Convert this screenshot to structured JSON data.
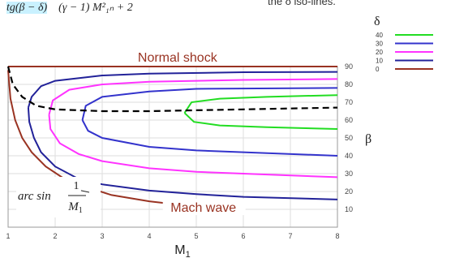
{
  "formula": {
    "part1": "tg(β − δ)",
    "part2": "(γ − 1) M²₁ₙ + 2",
    "note": "the δ iso-lines."
  },
  "chart_data": {
    "type": "line",
    "title": "",
    "xlabel": "M1",
    "xlabel_sub": "1",
    "xlabel_main": "M",
    "ylabel": "β",
    "xlim": [
      1,
      8
    ],
    "ylim": [
      0,
      90
    ],
    "xticks": [
      "1",
      "2",
      "3",
      "4",
      "5",
      "6",
      "7",
      "8"
    ],
    "yticks": [
      "10",
      "20",
      "30",
      "40",
      "50",
      "60",
      "70",
      "80",
      "90"
    ],
    "legend": {
      "title": "δ",
      "position": "right",
      "entries": [
        {
          "label": "40",
          "color": "#22dd22"
        },
        {
          "label": "30",
          "color": "#3333cc"
        },
        {
          "label": "20",
          "color": "#ff33ff"
        },
        {
          "label": "10",
          "color": "#222299"
        },
        {
          "label": "0",
          "color": "#993322"
        }
      ]
    },
    "annotations": {
      "normal_shock": "Normal shock",
      "mach_wave": "Mach wave",
      "arcsin_text": "arc sin",
      "frac_num": "1",
      "frac_den_main": "M",
      "frac_den_sub": "1"
    },
    "series": [
      {
        "name": "0",
        "color": "#993322",
        "strong": [
          [
            1.0,
            90
          ],
          [
            8.0,
            90
          ]
        ],
        "weak": [
          [
            1.0,
            88
          ],
          [
            1.05,
            72
          ],
          [
            1.15,
            60
          ],
          [
            1.3,
            50
          ],
          [
            1.5,
            42
          ],
          [
            1.8,
            34
          ],
          [
            2.2,
            27
          ],
          [
            2.6,
            23
          ],
          [
            3.2,
            18
          ],
          [
            4.0,
            14.5
          ],
          [
            5.0,
            11.5
          ],
          [
            6.0,
            9.6
          ]
        ]
      },
      {
        "name": "10",
        "color": "#222299",
        "strong": [
          [
            1.43,
            67
          ],
          [
            1.5,
            73
          ],
          [
            1.7,
            79
          ],
          [
            2.0,
            82
          ],
          [
            3.0,
            85
          ],
          [
            4.0,
            86
          ],
          [
            6.0,
            86.8
          ],
          [
            8.0,
            87
          ]
        ],
        "weak": [
          [
            1.43,
            67
          ],
          [
            1.45,
            59
          ],
          [
            1.55,
            50
          ],
          [
            1.7,
            42
          ],
          [
            2.0,
            34
          ],
          [
            2.5,
            27
          ],
          [
            3.0,
            24
          ],
          [
            4.0,
            20.5
          ],
          [
            5.0,
            18.5
          ],
          [
            6.0,
            17
          ],
          [
            8.0,
            15.5
          ]
        ]
      },
      {
        "name": "20",
        "color": "#ff33ff",
        "strong": [
          [
            1.87,
            63
          ],
          [
            1.95,
            71
          ],
          [
            2.3,
            77
          ],
          [
            3.0,
            80
          ],
          [
            4.0,
            81.5
          ],
          [
            6.0,
            82.5
          ],
          [
            8.0,
            83
          ]
        ],
        "weak": [
          [
            1.87,
            63
          ],
          [
            1.9,
            55
          ],
          [
            2.1,
            47
          ],
          [
            2.5,
            41
          ],
          [
            3.0,
            37
          ],
          [
            4.0,
            33
          ],
          [
            5.0,
            31
          ],
          [
            6.0,
            30
          ],
          [
            8.0,
            28
          ]
        ]
      },
      {
        "name": "30",
        "color": "#3333cc",
        "strong": [
          [
            2.58,
            60
          ],
          [
            2.65,
            68
          ],
          [
            3.0,
            73
          ],
          [
            4.0,
            76
          ],
          [
            5.0,
            77.5
          ],
          [
            8.0,
            78
          ]
        ],
        "weak": [
          [
            2.58,
            60
          ],
          [
            2.7,
            54
          ],
          [
            3.0,
            50
          ],
          [
            4.0,
            45
          ],
          [
            5.0,
            43
          ],
          [
            6.0,
            42
          ],
          [
            8.0,
            40
          ]
        ]
      },
      {
        "name": "40",
        "color": "#22dd22",
        "strong": [
          [
            4.75,
            64
          ],
          [
            4.9,
            70
          ],
          [
            5.5,
            72
          ],
          [
            6.5,
            73
          ],
          [
            8.0,
            74
          ]
        ],
        "weak": [
          [
            4.75,
            64
          ],
          [
            4.95,
            59
          ],
          [
            5.5,
            57
          ],
          [
            6.5,
            56
          ],
          [
            8.0,
            55
          ]
        ]
      }
    ],
    "max_deflection": [
      [
        1.0,
        90
      ],
      [
        1.1,
        80
      ],
      [
        1.3,
        73
      ],
      [
        1.6,
        68
      ],
      [
        2.0,
        66
      ],
      [
        3.0,
        65
      ],
      [
        4.0,
        65
      ],
      [
        6.0,
        66
      ],
      [
        8.0,
        67
      ]
    ]
  }
}
